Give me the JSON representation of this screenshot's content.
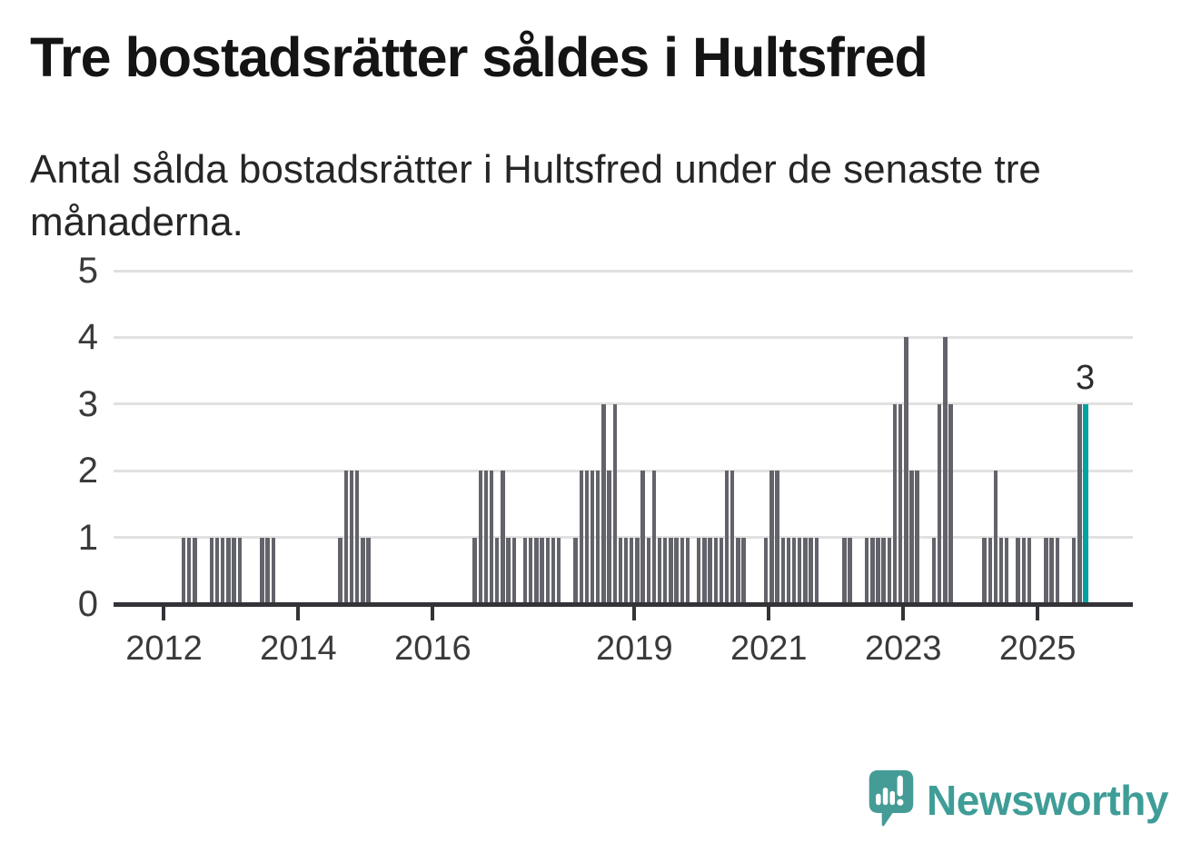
{
  "header": {
    "title": "Tre bostadsrätter såldes i Hultsfred",
    "subtitle": "Antal sålda bostadsrätter i Hultsfred under de senaste tre månaderna."
  },
  "footer": {
    "brand": "Newsworthy"
  },
  "colors": {
    "bar": "#63636b",
    "highlight": "#00a2a2",
    "grid": "#e1e1e1",
    "axis": "#333338",
    "labels": "#3a3a3a",
    "logo": "#459c96"
  },
  "chart_data": {
    "type": "bar",
    "title": "Tre bostadsrätter såldes i Hultsfred",
    "subtitle": "Antal sålda bostadsrätter i Hultsfred under de senaste tre månaderna.",
    "xlabel": "",
    "ylabel": "",
    "frequency": "monthly",
    "start_month": "2011-04",
    "end_month": "2025-09",
    "values": [
      0,
      0,
      0,
      0,
      0,
      0,
      0,
      0,
      0,
      0,
      0,
      0,
      1,
      1,
      1,
      0,
      0,
      1,
      1,
      1,
      1,
      1,
      1,
      0,
      0,
      0,
      1,
      1,
      1,
      0,
      0,
      0,
      0,
      0,
      0,
      0,
      0,
      0,
      0,
      0,
      1,
      2,
      2,
      2,
      1,
      1,
      0,
      0,
      0,
      0,
      0,
      0,
      0,
      0,
      0,
      0,
      0,
      0,
      0,
      0,
      0,
      0,
      0,
      0,
      1,
      2,
      2,
      2,
      1,
      2,
      1,
      1,
      0,
      1,
      1,
      1,
      1,
      1,
      1,
      1,
      0,
      0,
      1,
      2,
      2,
      2,
      2,
      3,
      2,
      3,
      1,
      1,
      1,
      1,
      2,
      1,
      2,
      1,
      1,
      1,
      1,
      1,
      1,
      0,
      1,
      1,
      1,
      1,
      1,
      2,
      2,
      1,
      1,
      0,
      0,
      0,
      1,
      2,
      2,
      1,
      1,
      1,
      1,
      1,
      1,
      1,
      0,
      0,
      0,
      0,
      1,
      1,
      0,
      0,
      1,
      1,
      1,
      1,
      1,
      3,
      3,
      4,
      2,
      2,
      0,
      0,
      1,
      3,
      4,
      3,
      0,
      0,
      0,
      0,
      0,
      1,
      1,
      2,
      1,
      1,
      0,
      1,
      1,
      1,
      0,
      0,
      1,
      1,
      1,
      0,
      0,
      1,
      3,
      3
    ],
    "ylim": [
      0,
      5
    ],
    "y_ticks": [
      0,
      1,
      2,
      3,
      4,
      5
    ],
    "x_tick_years": [
      2012,
      2014,
      2016,
      2019,
      2021,
      2023,
      2025
    ],
    "total_slots": 182,
    "grid": "horizontal",
    "legend_position": "none",
    "highlight_index": 173,
    "highlight_label": "3",
    "highlight_month": "2025-09"
  }
}
